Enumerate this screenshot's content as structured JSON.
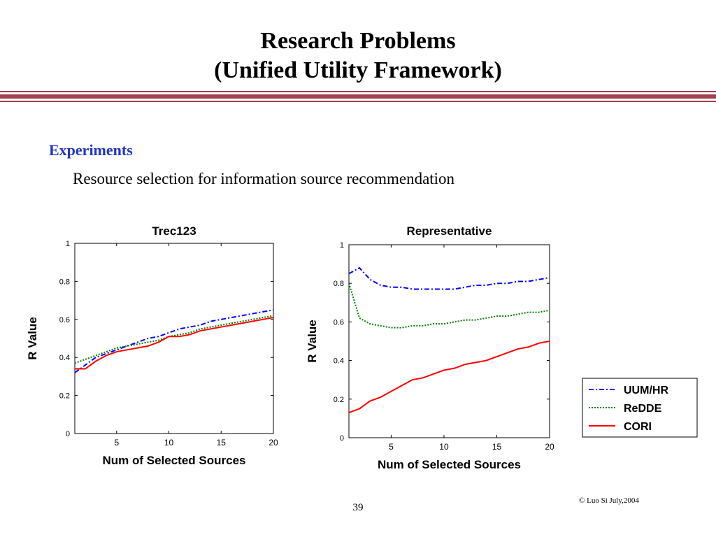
{
  "slide": {
    "title_line1": "Research Problems",
    "title_line2": "(Unified Utility Framework)",
    "heading": "Experiments",
    "subheading": "Resource selection for information source recommendation",
    "copyright": "© Luo Si July,2004",
    "page_number": "39",
    "bar_color": "#a0414f"
  },
  "legend": {
    "entries": [
      {
        "label": "UUM/HR",
        "color": "#0000ff",
        "style": "dash-dot"
      },
      {
        "label": "ReDDE",
        "color": "#008000",
        "style": "dotted"
      },
      {
        "label": "CORI",
        "color": "#ff0000",
        "style": "solid"
      }
    ]
  },
  "chart_data": [
    {
      "type": "line",
      "title": "Trec123",
      "xlabel": "Num of Selected Sources",
      "ylabel": "R Value",
      "xlim": [
        1,
        20
      ],
      "ylim": [
        0,
        1
      ],
      "xticks": [
        "5",
        "10",
        "15",
        "20"
      ],
      "yticks": [
        "0",
        "0.2",
        "0.4",
        "0.6",
        "0.8",
        "1"
      ],
      "x": [
        1,
        2,
        3,
        4,
        5,
        6,
        7,
        8,
        9,
        10,
        11,
        12,
        13,
        14,
        15,
        16,
        17,
        18,
        19,
        20
      ],
      "series": [
        {
          "name": "UUM/HR",
          "values": [
            0.32,
            0.36,
            0.4,
            0.42,
            0.44,
            0.46,
            0.48,
            0.5,
            0.51,
            0.53,
            0.55,
            0.56,
            0.57,
            0.59,
            0.6,
            0.61,
            0.62,
            0.63,
            0.64,
            0.65
          ]
        },
        {
          "name": "ReDDE",
          "values": [
            0.37,
            0.39,
            0.41,
            0.43,
            0.45,
            0.46,
            0.47,
            0.48,
            0.49,
            0.51,
            0.52,
            0.53,
            0.55,
            0.56,
            0.57,
            0.58,
            0.59,
            0.6,
            0.61,
            0.62
          ]
        },
        {
          "name": "CORI",
          "values": [
            0.34,
            0.34,
            0.38,
            0.41,
            0.43,
            0.44,
            0.45,
            0.46,
            0.48,
            0.51,
            0.51,
            0.52,
            0.54,
            0.55,
            0.56,
            0.57,
            0.58,
            0.59,
            0.6,
            0.61
          ]
        }
      ]
    },
    {
      "type": "line",
      "title": "Representative",
      "xlabel": "Num of Selected Sources",
      "ylabel": "R Value",
      "xlim": [
        1,
        20
      ],
      "ylim": [
        0,
        1
      ],
      "xticks": [
        "5",
        "10",
        "15",
        "20"
      ],
      "yticks": [
        "0",
        "0.2",
        "0.4",
        "0.6",
        "0.8",
        "1"
      ],
      "x": [
        1,
        2,
        3,
        4,
        5,
        6,
        7,
        8,
        9,
        10,
        11,
        12,
        13,
        14,
        15,
        16,
        17,
        18,
        19,
        20
      ],
      "series": [
        {
          "name": "UUM/HR",
          "values": [
            0.85,
            0.88,
            0.82,
            0.79,
            0.78,
            0.78,
            0.77,
            0.77,
            0.77,
            0.77,
            0.77,
            0.78,
            0.79,
            0.79,
            0.8,
            0.8,
            0.81,
            0.81,
            0.82,
            0.83
          ]
        },
        {
          "name": "ReDDE",
          "values": [
            0.8,
            0.62,
            0.59,
            0.58,
            0.57,
            0.57,
            0.58,
            0.58,
            0.59,
            0.59,
            0.6,
            0.61,
            0.61,
            0.62,
            0.63,
            0.63,
            0.64,
            0.65,
            0.65,
            0.66
          ]
        },
        {
          "name": "CORI",
          "values": [
            0.13,
            0.15,
            0.19,
            0.21,
            0.24,
            0.27,
            0.3,
            0.31,
            0.33,
            0.35,
            0.36,
            0.38,
            0.39,
            0.4,
            0.42,
            0.44,
            0.46,
            0.47,
            0.49,
            0.5
          ]
        }
      ]
    }
  ]
}
